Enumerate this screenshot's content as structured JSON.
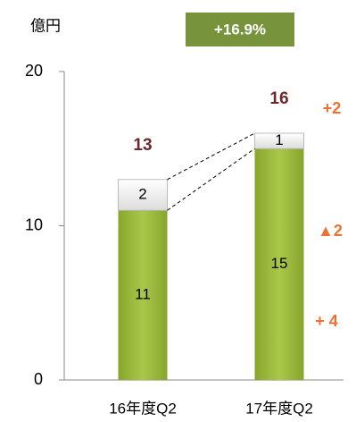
{
  "chart_data": {
    "type": "stacked-bar",
    "ylabel": "億円",
    "categories": [
      "16年度Q2",
      "17年度Q2"
    ],
    "series": [
      {
        "color": "#9dbb3d",
        "values": [
          11,
          15
        ]
      },
      {
        "color": "#ffffff",
        "values": [
          2,
          1
        ]
      }
    ],
    "totals": [
      13,
      16
    ],
    "ylim": [
      0,
      20
    ],
    "yticks": [
      0,
      10,
      20
    ],
    "annotations": {
      "growth": "+16.9%",
      "changes": [
        "+2",
        "▲2",
        "+ 4"
      ]
    }
  }
}
